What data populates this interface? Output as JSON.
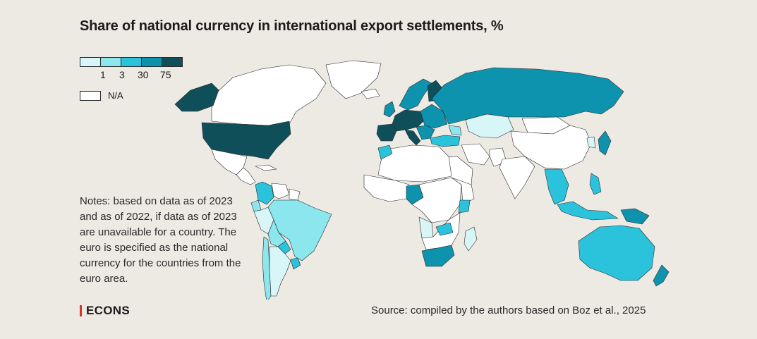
{
  "title": "Share of national currency in international export settlements, %",
  "legend": {
    "bins": [
      {
        "color": "#d8f5f7"
      },
      {
        "color": "#8ce6ee"
      },
      {
        "color": "#2bc2dc"
      },
      {
        "color": "#0e93ae"
      },
      {
        "color": "#0f4f5a"
      }
    ],
    "thresholds": [
      "1",
      "3",
      "30",
      "75"
    ],
    "na_label": "N/A",
    "na_color": "#ffffff"
  },
  "notes": "Notes: based on data as of 2023 and as of 2022, if data as of 2023 are unavailable for a country. The euro is specified as the national currency for the countries from the euro area.",
  "logo": "ECONS",
  "source": "Source: compiled by the authors based on Boz et al., 2025",
  "regions": [
    {
      "id": "canada",
      "bin": "na"
    },
    {
      "id": "greenland",
      "bin": "na"
    },
    {
      "id": "alaska",
      "bin": 4
    },
    {
      "id": "usa",
      "bin": 4
    },
    {
      "id": "mexico",
      "bin": "na"
    },
    {
      "id": "central-america",
      "bin": "na"
    },
    {
      "id": "cuba",
      "bin": "na"
    },
    {
      "id": "colombia",
      "bin": 2
    },
    {
      "id": "venezuela",
      "bin": "na"
    },
    {
      "id": "guianas",
      "bin": "na"
    },
    {
      "id": "ecuador",
      "bin": 1
    },
    {
      "id": "peru",
      "bin": 0
    },
    {
      "id": "brazil",
      "bin": 1
    },
    {
      "id": "bolivia",
      "bin": 1
    },
    {
      "id": "paraguay",
      "bin": 2
    },
    {
      "id": "chile",
      "bin": 1
    },
    {
      "id": "argentina",
      "bin": 0
    },
    {
      "id": "uruguay",
      "bin": 2
    },
    {
      "id": "iceland",
      "bin": "na"
    },
    {
      "id": "uk-ireland",
      "bin": 3
    },
    {
      "id": "scandinavia",
      "bin": 3
    },
    {
      "id": "finland",
      "bin": 4
    },
    {
      "id": "iberia",
      "bin": 4
    },
    {
      "id": "central-europe",
      "bin": 4
    },
    {
      "id": "eastern-europe",
      "bin": 3
    },
    {
      "id": "italy",
      "bin": 4
    },
    {
      "id": "balkans",
      "bin": 3
    },
    {
      "id": "turkey",
      "bin": 2
    },
    {
      "id": "russia",
      "bin": 3
    },
    {
      "id": "kazakhstan",
      "bin": 0
    },
    {
      "id": "caucasus",
      "bin": 1
    },
    {
      "id": "mongolia",
      "bin": "na"
    },
    {
      "id": "china",
      "bin": "na"
    },
    {
      "id": "korea",
      "bin": 0
    },
    {
      "id": "japan",
      "bin": 3
    },
    {
      "id": "iran",
      "bin": "na"
    },
    {
      "id": "arabia",
      "bin": "na"
    },
    {
      "id": "pakistan",
      "bin": "na"
    },
    {
      "id": "india",
      "bin": "na"
    },
    {
      "id": "indochina",
      "bin": 2
    },
    {
      "id": "philippines",
      "bin": 2
    },
    {
      "id": "indonesia",
      "bin": 2
    },
    {
      "id": "papua",
      "bin": 3
    },
    {
      "id": "australia",
      "bin": 2
    },
    {
      "id": "new-zealand",
      "bin": 3
    },
    {
      "id": "north-africa",
      "bin": "na"
    },
    {
      "id": "morocco",
      "bin": 2
    },
    {
      "id": "west-africa",
      "bin": "na"
    },
    {
      "id": "nigeria",
      "bin": 3
    },
    {
      "id": "central-africa",
      "bin": "na"
    },
    {
      "id": "east-africa",
      "bin": "na"
    },
    {
      "id": "kenya",
      "bin": 2
    },
    {
      "id": "angola",
      "bin": 0
    },
    {
      "id": "southern-africa",
      "bin": "na"
    },
    {
      "id": "zambia",
      "bin": 2
    },
    {
      "id": "madagascar",
      "bin": 0
    },
    {
      "id": "south-africa",
      "bin": 3
    }
  ]
}
